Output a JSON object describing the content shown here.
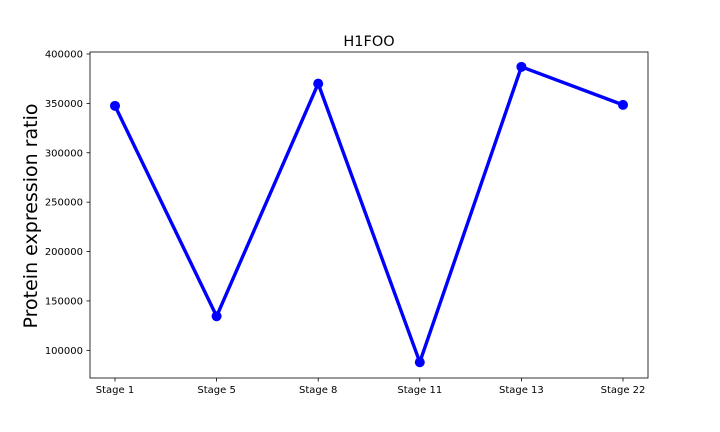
{
  "chart_data": {
    "type": "line",
    "title": "H1FOO",
    "xlabel": "",
    "ylabel": "Protein expression ratio",
    "categories": [
      "Stage 1",
      "Stage 5",
      "Stage 8",
      "Stage 11",
      "Stage 13",
      "Stage 22"
    ],
    "series": [
      {
        "values": [
          347500,
          134500,
          370000,
          88000,
          387000,
          348500
        ],
        "color": "#0000ff",
        "marker": "circle"
      }
    ],
    "yticks": [
      100000,
      150000,
      200000,
      250000,
      300000,
      350000,
      400000
    ],
    "ylim": [
      72000,
      402000
    ],
    "grid": false,
    "legend": "none"
  }
}
